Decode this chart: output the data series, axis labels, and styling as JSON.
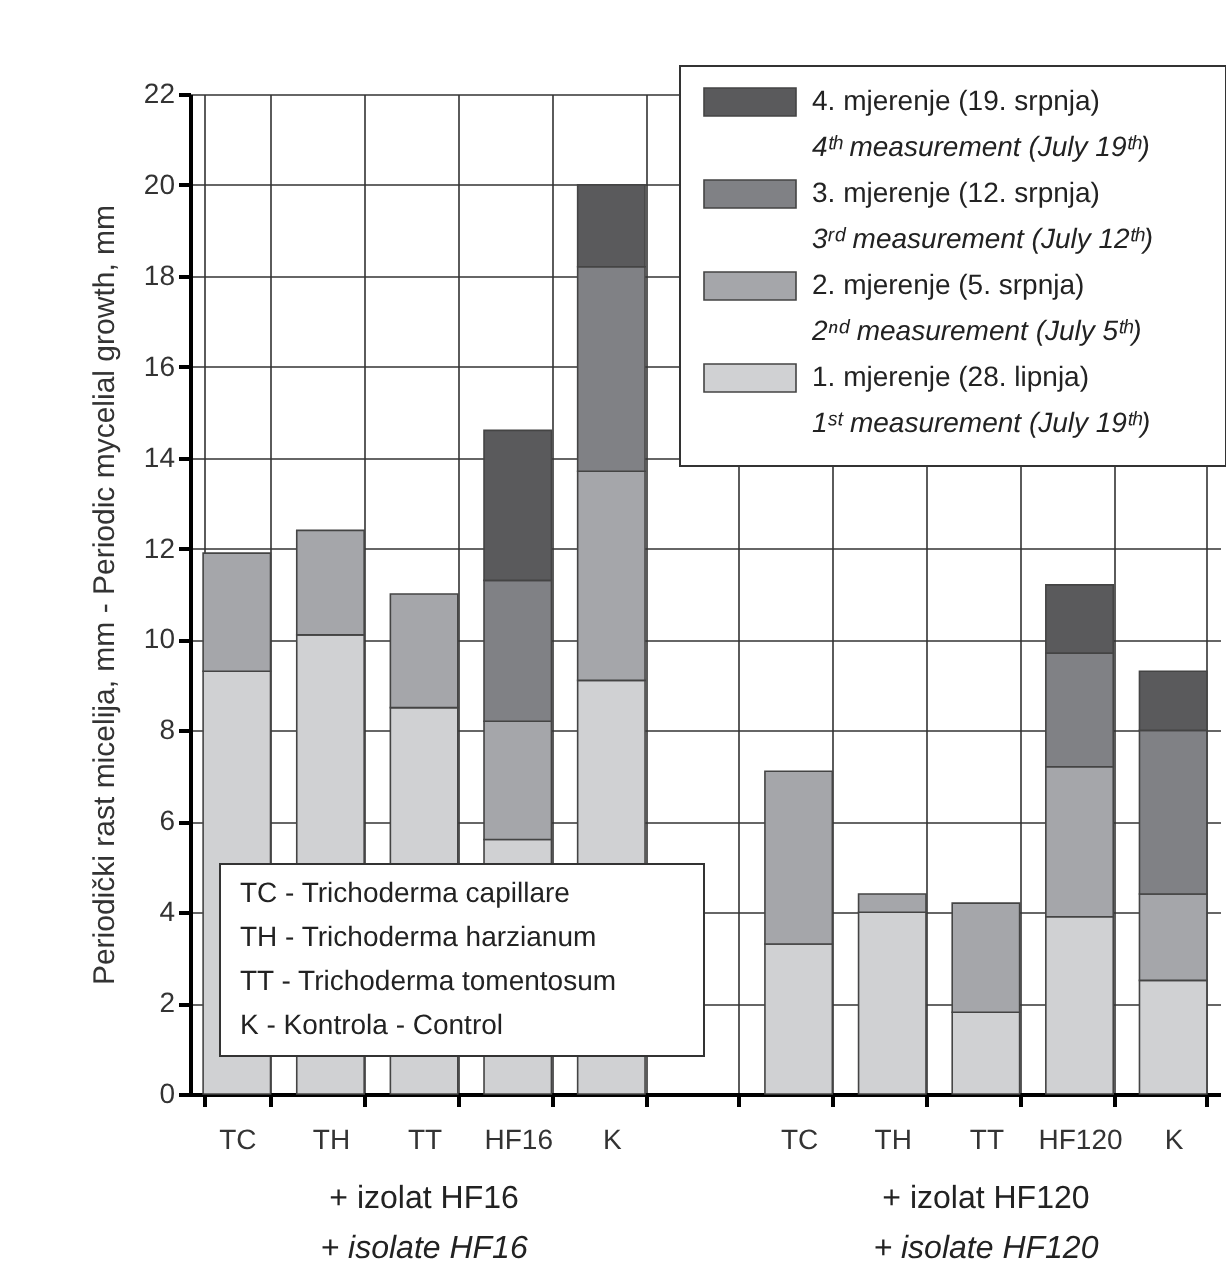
{
  "chart_data": {
    "type": "bar",
    "stacked": true,
    "ylabel": "Periodički rast micelija, mm - Periodic mycelial growth, mm",
    "categories": [
      "TC",
      "TH",
      "TT",
      "HF16",
      "K",
      null,
      "TC",
      "TH",
      "TT",
      "HF120",
      "K"
    ],
    "series": [
      {
        "name": "1. mjerenje (28. lipnja)\n1ˢᵗ measurement (July 19ᵗʰ)",
        "color": "#d0d1d3",
        "values": [
          9.3,
          10.1,
          8.5,
          5.6,
          9.1,
          null,
          3.3,
          4.0,
          1.8,
          3.9,
          2.5
        ]
      },
      {
        "name": "2. mjerenje (5. srpnja)\n2ⁿᵈ measurement (July 5ᵗʰ)",
        "color": "#a5a6aa",
        "values": [
          2.6,
          2.3,
          2.5,
          2.6,
          4.6,
          null,
          3.8,
          0.4,
          2.4,
          3.3,
          1.9
        ]
      },
      {
        "name": "3. mjerenje (12. srpnja)\n3ʳᵈ measurement (July 12ᵗʰ)",
        "color": "#808185",
        "values": [
          null,
          null,
          null,
          3.1,
          4.5,
          null,
          null,
          null,
          null,
          2.5,
          3.6
        ]
      },
      {
        "name": "4. mjerenje (19. srpnja)\n4ᵗʰ measurement (July 19ᵗʰ)",
        "color": "#5a5a5c",
        "values": [
          null,
          null,
          null,
          3.3,
          1.8,
          null,
          null,
          null,
          null,
          1.5,
          1.3
        ]
      }
    ],
    "ylim": [
      0,
      22
    ],
    "yticks": [
      0,
      2,
      4,
      6,
      8,
      10,
      12,
      14,
      16,
      18,
      20,
      22
    ],
    "grid": true,
    "legend": "top right",
    "annotations": [
      "+ izolat HF16\n+ isolate HF16",
      "+ izolat HF120\n+ isolate HF120",
      "TC - Trichoderma capillare",
      "TH - Trichoderma harzianum",
      "TT - Trichoderma tomentosum",
      "K - Kontrola - Control"
    ]
  }
}
